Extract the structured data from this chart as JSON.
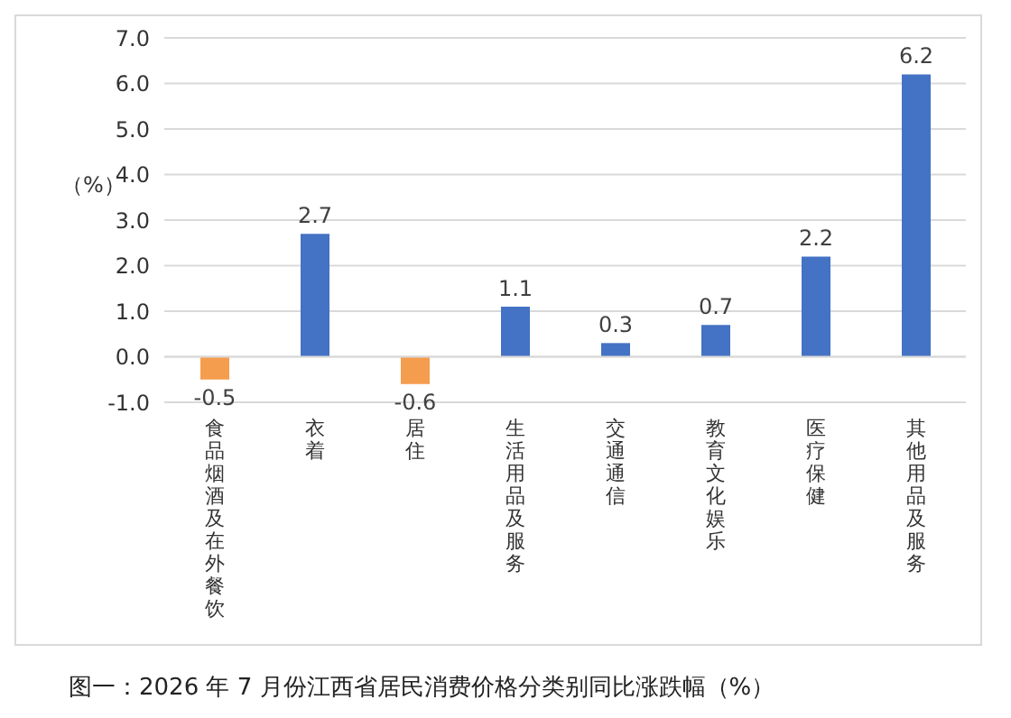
{
  "chart_data": {
    "type": "bar",
    "title": "图一：2026 年 7 月份江西省居民消费价格分类别同比涨跌幅（%）",
    "ylabel": "（%）",
    "categories": [
      "食品烟酒及在外餐饮",
      "衣着",
      "居住",
      "生活用品及服务",
      "交通通信",
      "教育文化娱乐",
      "医疗保健",
      "其他用品及服务"
    ],
    "values": [
      -0.5,
      2.7,
      -0.6,
      1.1,
      0.3,
      0.7,
      2.2,
      6.2
    ],
    "colors": [
      "#f59d4e",
      "#4472c4",
      "#f59d4e",
      "#4472c4",
      "#4472c4",
      "#4472c4",
      "#4472c4",
      "#4472c4"
    ],
    "ylim": [
      -1,
      7
    ],
    "yticks": [
      {
        "value": -1,
        "label": "-1.0"
      },
      {
        "value": 0,
        "label": "0.0"
      },
      {
        "value": 1,
        "label": "1.0"
      },
      {
        "value": 2,
        "label": "2.0"
      },
      {
        "value": 3,
        "label": "3.0"
      },
      {
        "value": 4,
        "label": "4.0"
      },
      {
        "value": 5,
        "label": "5.0"
      },
      {
        "value": 6,
        "label": "6.0"
      },
      {
        "value": 7,
        "label": "7.0"
      }
    ],
    "grid": "y",
    "data_labels": true
  }
}
